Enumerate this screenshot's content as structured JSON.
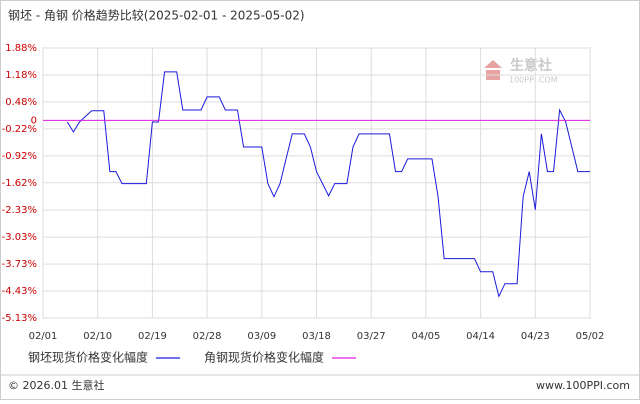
{
  "chart_data": {
    "type": "line",
    "title": "钢坯 - 角钢 价格趋势比较(2025-02-01 - 2025-05-02)",
    "xlim": [
      "02/01",
      "05/02"
    ],
    "xticks": [
      "02/01",
      "02/10",
      "02/19",
      "02/28",
      "03/09",
      "03/18",
      "03/27",
      "04/05",
      "04/14",
      "04/23",
      "05/02"
    ],
    "ylim": [
      -5.13,
      1.88
    ],
    "yticks": [
      {
        "value": 1.88,
        "label": "1.88%"
      },
      {
        "value": 1.18,
        "label": "1.18%"
      },
      {
        "value": 0.48,
        "label": "0.48%"
      },
      0,
      {
        "value": -0.22,
        "label": "-0.22%"
      },
      {
        "value": -0.92,
        "label": "-0.92%"
      },
      {
        "value": -1.62,
        "label": "-1.62%"
      },
      {
        "value": -2.33,
        "label": "-2.33%"
      },
      {
        "value": -3.03,
        "label": "-3.03%"
      },
      {
        "value": -3.73,
        "label": "-3.73%"
      },
      {
        "value": -4.43,
        "label": "-4.43%"
      },
      {
        "value": -5.13,
        "label": "-5.13%"
      }
    ],
    "grid": true,
    "series": [
      {
        "name": "钢坯现货价格变化幅度",
        "color": "#1a1adc",
        "x": [
          "02/05",
          "02/06",
          "02/07",
          "02/09",
          "02/11",
          "02/12",
          "02/13",
          "02/14",
          "02/18",
          "02/19",
          "02/20",
          "02/21",
          "02/23",
          "02/24",
          "02/27",
          "02/28",
          "03/02",
          "03/03",
          "03/05",
          "03/06",
          "03/09",
          "03/10",
          "03/11",
          "03/12",
          "03/14",
          "03/16",
          "03/17",
          "03/18",
          "03/20",
          "03/21",
          "03/23",
          "03/24",
          "03/25",
          "03/30",
          "03/31",
          "04/01",
          "04/02",
          "04/06",
          "04/07",
          "04/08",
          "04/13",
          "04/14",
          "04/16",
          "04/17",
          "04/18",
          "04/20",
          "04/21",
          "04/22",
          "04/23",
          "04/24",
          "04/25",
          "04/26",
          "04/27",
          "04/28",
          "04/30",
          "05/02"
        ],
        "values": [
          -0.04,
          -0.3,
          -0.04,
          0.25,
          0.25,
          -1.33,
          -1.33,
          -1.64,
          -1.64,
          -0.04,
          -0.04,
          1.26,
          1.26,
          0.27,
          0.27,
          0.61,
          0.61,
          0.27,
          0.27,
          -0.69,
          -0.69,
          -1.64,
          -1.98,
          -1.64,
          -0.35,
          -0.35,
          -0.69,
          -1.33,
          -1.96,
          -1.64,
          -1.64,
          -0.69,
          -0.35,
          -0.35,
          -1.33,
          -1.33,
          -1.0,
          -1.0,
          -1.98,
          -3.59,
          -3.59,
          -3.93,
          -3.93,
          -4.57,
          -4.24,
          -4.24,
          -1.98,
          -1.33,
          -2.32,
          -0.35,
          -1.33,
          -1.33,
          0.27,
          -0.04,
          -1.33,
          -1.33
        ]
      },
      {
        "name": "角钢现货价格变化幅度",
        "color": "#e020e0",
        "x": [
          "02/01",
          "05/02"
        ],
        "values": [
          0,
          0
        ]
      }
    ],
    "footer_left": "© 2026.01 生意社",
    "footer_right": "www.100PPI.com",
    "watermark": "生意社",
    "watermark_sub": "100PPI.COM"
  }
}
